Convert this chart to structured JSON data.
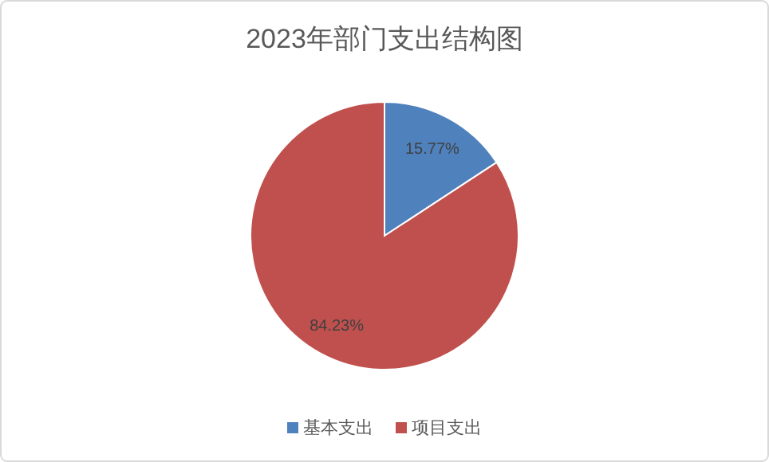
{
  "chart_data": {
    "type": "pie",
    "title": "2023年部门支出结构图",
    "categories": [
      "基本支出",
      "项目支出"
    ],
    "values": [
      15.77,
      84.23
    ],
    "colors": [
      "#4f81bd",
      "#c0504d"
    ],
    "value_labels": [
      "15.77%",
      "84.23%"
    ],
    "legend": "bottom"
  }
}
